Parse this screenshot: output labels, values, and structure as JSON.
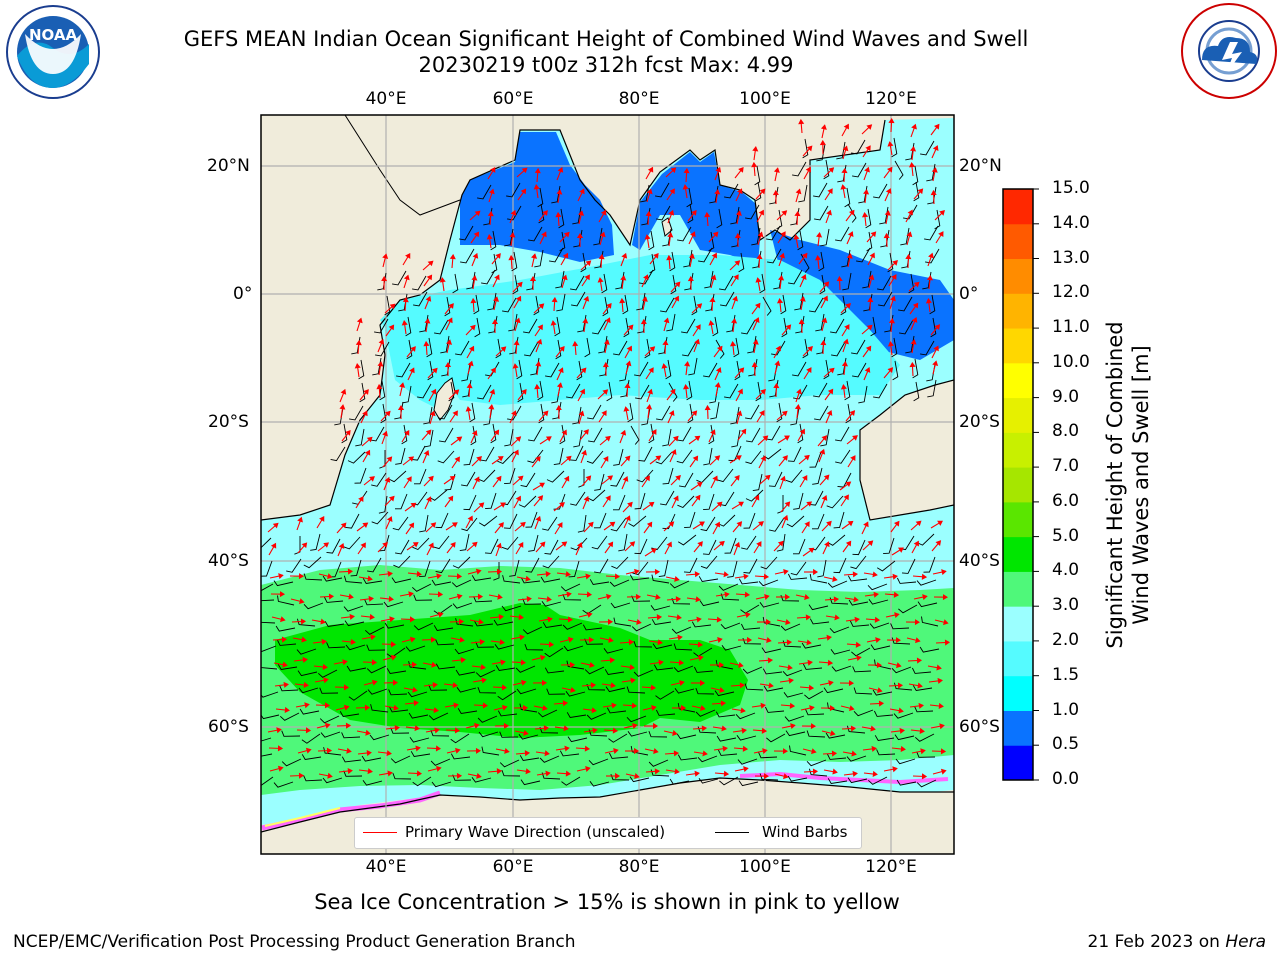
{
  "header": {
    "title_line1": "GEFS MEAN Indian Ocean Significant Height of Combined Wind Waves and Swell",
    "title_line2": "20230219 t00z 312h fcst   Max: 4.99"
  },
  "logos": {
    "left": {
      "name": "noaa-logo",
      "text": "NOAA"
    },
    "right": {
      "name": "nws-logo",
      "text": "NATIONAL WEATHER SERVICE"
    }
  },
  "map": {
    "lon_ticks": [
      "40°E",
      "60°E",
      "80°E",
      "100°E",
      "120°E"
    ],
    "lat_ticks": [
      "20°N",
      "0°",
      "20°S",
      "40°S",
      "60°S"
    ],
    "lon_range": [
      20,
      130
    ],
    "lat_range": [
      -75,
      28
    ],
    "colors": {
      "land": "#f0ecdb",
      "ice_pink": "#ff66ff",
      "ice_yellow": "#ffff66",
      "grid": "#b0b0b0"
    }
  },
  "legend": {
    "wave_label": "Primary Wave Direction (unscaled)",
    "wind_label": "Wind Barbs",
    "wave_color": "#ff0000",
    "wind_color": "#000000"
  },
  "colorbar": {
    "title_line1": "Significant Height of Combined",
    "title_line2": "Wind Waves and Swell [m]",
    "ticks": [
      "0.0",
      "0.5",
      "1.0",
      "1.5",
      "2.0",
      "3.0",
      "4.0",
      "5.0",
      "6.0",
      "7.0",
      "8.0",
      "9.0",
      "10.0",
      "11.0",
      "12.0",
      "13.0",
      "14.0",
      "15.0"
    ],
    "colors": [
      "#0000ff",
      "#0a73ff",
      "#00ffff",
      "#55fbff",
      "#9bffff",
      "#4ff87a",
      "#00e600",
      "#5ae600",
      "#a6e600",
      "#c8f000",
      "#e6f000",
      "#ffff00",
      "#ffd700",
      "#ffb400",
      "#ff8c00",
      "#ff5a00",
      "#ff2800"
    ]
  },
  "footer": {
    "subtitle": "Sea Ice Concentration > 15% is shown in pink to yellow",
    "left": "NCEP/EMC/Verification Post Processing Product Generation Branch",
    "date": "21 Feb 2023 on ",
    "host": "Hera"
  }
}
